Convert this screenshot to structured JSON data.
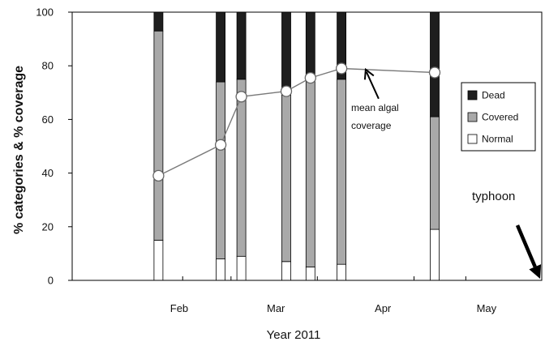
{
  "chart_data": {
    "type": "bar",
    "subtype": "stacked-bar-with-line",
    "title": "",
    "xlabel": "Year 2011",
    "ylabel": "% categories & % coverage",
    "ylim": [
      0,
      100
    ],
    "yticks": [
      0,
      20,
      40,
      60,
      80,
      100
    ],
    "x_axis": {
      "type": "date",
      "range": [
        "2011-01-15",
        "2011-05-31"
      ]
    },
    "month_labels": [
      {
        "label": "Feb",
        "date": "2011-02-15"
      },
      {
        "label": "Mar",
        "date": "2011-03-15"
      },
      {
        "label": "Apr",
        "date": "2011-04-15"
      },
      {
        "label": "May",
        "date": "2011-05-15"
      }
    ],
    "minor_tick_dates": [
      "2011-02-16",
      "2011-03-02",
      "2011-03-27",
      "2011-04-24",
      "2011-05-09"
    ],
    "bar_colors": {
      "Dead": "#1e1e1e",
      "Covered": "#a9a9a9",
      "Normal": "#ffffff"
    },
    "bars": [
      {
        "date": "2011-02-09",
        "Normal": 15,
        "Covered": 78,
        "Dead": 7
      },
      {
        "date": "2011-02-27",
        "Normal": 8,
        "Covered": 66,
        "Dead": 26
      },
      {
        "date": "2011-03-05",
        "Normal": 9,
        "Covered": 66,
        "Dead": 25
      },
      {
        "date": "2011-03-18",
        "Normal": 7,
        "Covered": 62,
        "Dead": 31
      },
      {
        "date": "2011-03-25",
        "Normal": 5,
        "Covered": 70,
        "Dead": 25
      },
      {
        "date": "2011-04-03",
        "Normal": 6,
        "Covered": 69,
        "Dead": 25
      },
      {
        "date": "2011-04-30",
        "Normal": 19,
        "Covered": 42,
        "Dead": 39
      }
    ],
    "line_series": {
      "name": "mean algal coverage",
      "points": [
        {
          "date": "2011-02-09",
          "y": 39
        },
        {
          "date": "2011-02-27",
          "y": 50.5
        },
        {
          "date": "2011-03-05",
          "y": 68.5
        },
        {
          "date": "2011-03-18",
          "y": 70.5
        },
        {
          "date": "2011-03-25",
          "y": 75.5
        },
        {
          "date": "2011-04-03",
          "y": 79
        },
        {
          "date": "2011-04-30",
          "y": 77.5
        }
      ]
    },
    "legend": {
      "placement": "right",
      "entries": [
        {
          "name": "Dead",
          "color": "#1e1e1e"
        },
        {
          "name": "Covered",
          "color": "#a9a9a9"
        },
        {
          "name": "Normal",
          "color": "#ffffff"
        }
      ]
    },
    "annotations": {
      "mean_algal": {
        "lines": [
          "mean algal",
          "coverage"
        ],
        "arrow_target": {
          "date": "2011-04-10",
          "y": 78.6
        }
      },
      "typhoon": {
        "label": "typhoon",
        "arrow_target": {
          "date": "2011-05-31",
          "y": 0
        }
      }
    },
    "grid": false
  }
}
